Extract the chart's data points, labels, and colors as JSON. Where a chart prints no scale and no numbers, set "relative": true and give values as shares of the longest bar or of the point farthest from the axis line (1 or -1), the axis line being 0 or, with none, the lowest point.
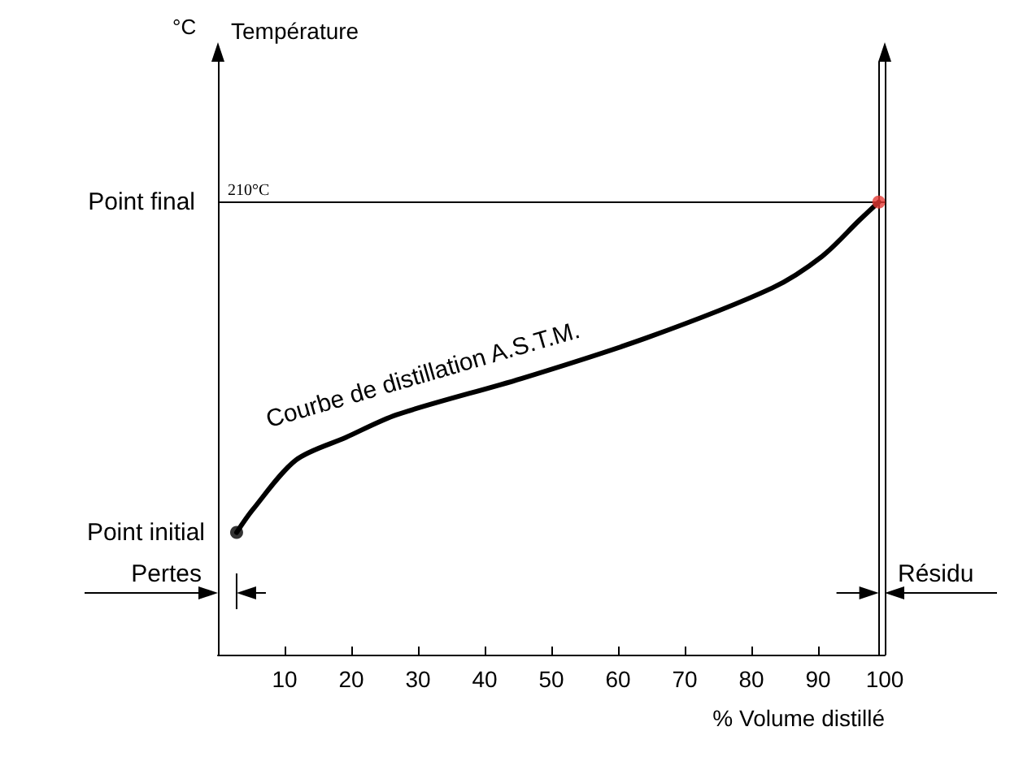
{
  "chart_data": {
    "type": "line",
    "relative": true,
    "xlabel": "% Volume distillé",
    "xlim": [
      0,
      100
    ],
    "xticks": [
      10,
      20,
      30,
      40,
      50,
      60,
      70,
      80,
      90,
      100
    ],
    "grid": false,
    "legend": false,
    "line_style": "solid",
    "series": [
      {
        "name": "Courbe de distillation A.S.T.M.",
        "color": "#000000",
        "marker": "none",
        "x": [
          2.8,
          5.2,
          11.7,
          19.2,
          26.8,
          45.5,
          64.3,
          83.1,
          90.6,
          96.2,
          99.1
        ],
        "values": [
          0.27,
          0.32,
          0.43,
          0.48,
          0.53,
          0.61,
          0.7,
          0.81,
          0.88,
          0.96,
          1
        ]
      },
      {
        "type": "scatter",
        "marker": "circle",
        "colors": [
          "#000000",
          "#e53935"
        ],
        "x": [
          2.8,
          99.1
        ],
        "values": [
          0.27,
          1
        ]
      }
    ],
    "ref_lines": [
      {
        "axis": "y",
        "value": 1,
        "label": "210°C",
        "color": "#000000"
      },
      {
        "axis": "x",
        "value": 99.1,
        "color": "#000000"
      }
    ],
    "annotations": [
      "°C",
      "Point final",
      "Point initial",
      "Pertes",
      "Résidu",
      "Température"
    ]
  }
}
